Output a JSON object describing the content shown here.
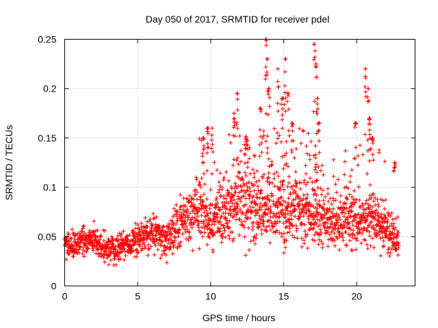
{
  "chart_data": {
    "type": "scatter",
    "title": "Day 050 of 2017, SRMTID for receiver pdel",
    "xlabel": "GPS time / hours",
    "ylabel": "SRMTID / TECUs",
    "xlim": [
      0,
      24
    ],
    "ylim": [
      0,
      0.25
    ],
    "xticks": [
      0,
      5,
      10,
      15,
      20
    ],
    "yticks": [
      0,
      0.05,
      0.1,
      0.15,
      0.2,
      0.25
    ],
    "xtick_labels": [
      "0",
      "5",
      "10",
      "15",
      "20"
    ],
    "ytick_labels": [
      "0",
      "0.05",
      "0.1",
      "0.15",
      "0.2",
      "0.25"
    ],
    "grid": true,
    "marker": "+",
    "series": [
      {
        "name": "SRMTID",
        "color": "#ff0000",
        "profile": {
          "x": [
            0,
            1,
            2,
            3,
            4,
            5,
            6,
            7,
            8,
            9,
            10,
            11,
            12,
            13,
            14,
            15,
            16,
            17,
            18,
            19,
            20,
            21,
            22,
            22.9
          ],
          "y_center": [
            0.042,
            0.045,
            0.048,
            0.036,
            0.042,
            0.048,
            0.055,
            0.045,
            0.068,
            0.075,
            0.065,
            0.075,
            0.085,
            0.078,
            0.085,
            0.07,
            0.08,
            0.075,
            0.065,
            0.07,
            0.065,
            0.07,
            0.055,
            0.042
          ],
          "y_spread": [
            0.012,
            0.012,
            0.015,
            0.013,
            0.013,
            0.016,
            0.018,
            0.016,
            0.022,
            0.028,
            0.025,
            0.028,
            0.035,
            0.032,
            0.035,
            0.03,
            0.032,
            0.03,
            0.025,
            0.025,
            0.025,
            0.025,
            0.02,
            0.018
          ]
        },
        "peaks": [
          {
            "x": 9.5,
            "y": 0.15
          },
          {
            "x": 9.8,
            "y": 0.16
          },
          {
            "x": 10.1,
            "y": 0.16
          },
          {
            "x": 11.6,
            "y": 0.175
          },
          {
            "x": 11.8,
            "y": 0.195
          },
          {
            "x": 12.4,
            "y": 0.15
          },
          {
            "x": 13.4,
            "y": 0.18
          },
          {
            "x": 13.8,
            "y": 0.25
          },
          {
            "x": 13.9,
            "y": 0.23
          },
          {
            "x": 14.0,
            "y": 0.2
          },
          {
            "x": 14.6,
            "y": 0.22
          },
          {
            "x": 14.9,
            "y": 0.19
          },
          {
            "x": 15.1,
            "y": 0.23
          },
          {
            "x": 15.3,
            "y": 0.195
          },
          {
            "x": 15.6,
            "y": 0.165
          },
          {
            "x": 17.1,
            "y": 0.245
          },
          {
            "x": 17.2,
            "y": 0.225
          },
          {
            "x": 17.3,
            "y": 0.19
          },
          {
            "x": 17.4,
            "y": 0.165
          },
          {
            "x": 19.9,
            "y": 0.165
          },
          {
            "x": 20.6,
            "y": 0.22
          },
          {
            "x": 20.8,
            "y": 0.2
          },
          {
            "x": 20.9,
            "y": 0.17
          },
          {
            "x": 21.1,
            "y": 0.15
          },
          {
            "x": 22.6,
            "y": 0.125
          }
        ]
      }
    ]
  }
}
